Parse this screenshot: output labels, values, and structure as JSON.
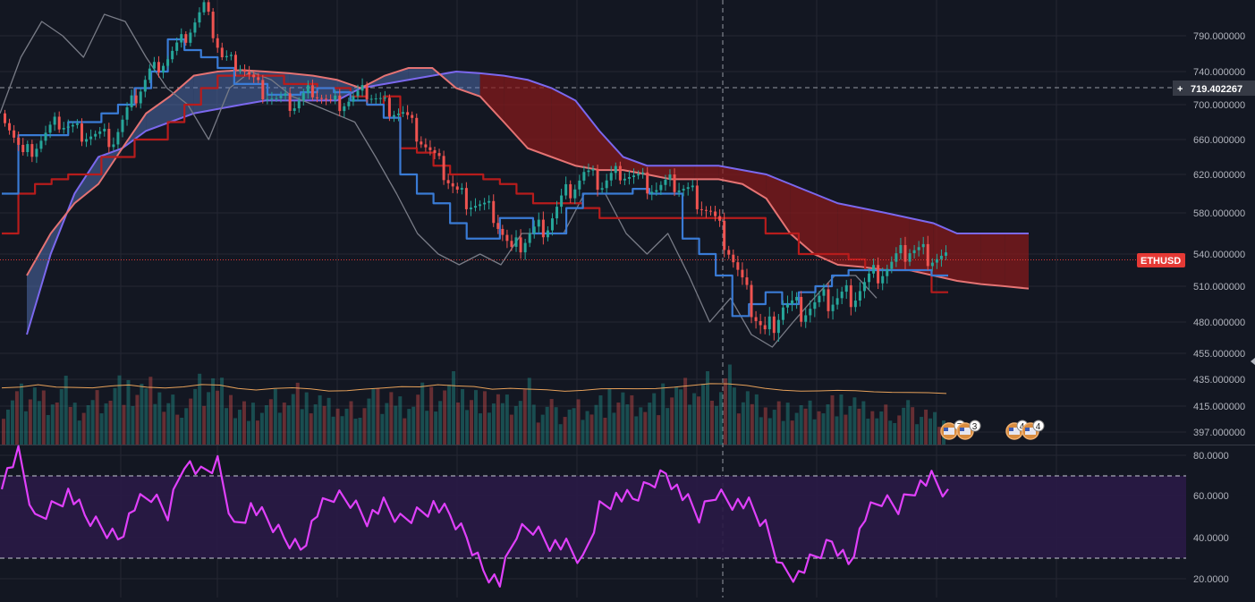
{
  "chart_data": [
    {
      "type": "line",
      "subtype": "candlestick-with-ichimoku-and-volume",
      "title": "",
      "symbol_label": "ETHUSD",
      "crosshair_price_label": "719.402267",
      "last_price": 536,
      "price_axis_ticks": [
        "790.000000",
        "740.000000",
        "700.000000",
        "660.000000",
        "620.000000",
        "580.000000",
        "540.000000",
        "510.000000",
        "480.000000",
        "455.000000",
        "435.000000",
        "415.000000",
        "397.000000"
      ],
      "price_axis_tick_values": [
        790,
        740,
        700,
        660,
        620,
        580,
        540,
        510,
        480,
        455,
        435,
        415,
        397
      ],
      "ylim": [
        390,
        845
      ],
      "grid": true,
      "series": [
        {
          "name": "",
          "kind": "kijun",
          "color": "#b71c1c",
          "values": [
            560,
            600,
            610,
            615,
            620,
            620,
            640,
            640,
            660,
            660,
            680,
            700,
            720,
            735,
            735,
            735,
            735,
            725,
            725,
            720,
            720,
            710,
            700,
            710,
            650,
            645,
            630,
            620,
            620,
            615,
            610,
            600,
            590,
            590,
            590,
            585,
            575,
            575,
            575,
            575,
            575,
            575,
            575,
            575,
            575,
            575,
            560,
            560,
            540,
            540,
            540,
            535,
            525,
            525,
            525,
            525,
            505,
            505
          ]
        },
        {
          "name": "",
          "kind": "tenkan",
          "color": "#3a7bd5",
          "values": [
            600,
            665,
            665,
            665,
            680,
            680,
            690,
            700,
            720,
            740,
            785,
            770,
            760,
            745,
            725,
            725,
            712,
            712,
            715,
            720,
            715,
            705,
            700,
            685,
            620,
            600,
            590,
            570,
            555,
            555,
            575,
            575,
            560,
            560,
            585,
            600,
            600,
            600,
            605,
            600,
            600,
            555,
            540,
            520,
            485,
            495,
            505,
            495,
            505,
            510,
            520,
            525,
            525,
            525,
            525,
            525,
            520,
            520
          ]
        },
        {
          "name": "",
          "kind": "lagging",
          "color": "#787b86",
          "values": [
            690,
            760,
            810,
            790,
            760,
            820,
            810,
            760,
            720,
            700,
            660,
            720,
            740,
            730,
            710,
            700,
            690,
            680,
            640,
            600,
            560,
            540,
            530,
            540,
            530,
            560,
            560,
            560,
            600,
            600,
            560,
            540,
            560,
            520,
            480,
            500,
            470,
            460,
            480,
            500,
            520,
            520,
            500
          ]
        },
        {
          "name": "",
          "kind": "cloud-span-a",
          "color": "#7b68ee",
          "values": [
            470,
            540,
            600,
            640,
            650,
            670,
            680,
            690,
            695,
            700,
            705,
            705,
            705,
            705,
            720,
            725,
            730,
            735,
            740,
            738,
            735,
            730,
            720,
            705,
            670,
            640,
            630,
            630,
            630,
            630,
            625,
            620,
            610,
            600,
            590,
            585,
            580,
            575,
            570,
            560,
            560,
            560,
            560
          ]
        },
        {
          "name": "",
          "kind": "cloud-span-b",
          "color": "#e57373",
          "values": [
            520,
            560,
            590,
            610,
            650,
            690,
            710,
            735,
            740,
            742,
            740,
            738,
            735,
            730,
            720,
            735,
            745,
            745,
            720,
            710,
            680,
            650,
            640,
            630,
            625,
            625,
            620,
            615,
            615,
            615,
            610,
            595,
            560,
            540,
            530,
            528,
            525,
            525,
            520,
            515,
            512,
            510,
            508
          ]
        },
        {
          "name": "",
          "kind": "close",
          "color": "#26a69a",
          "values": [
            690,
            640,
            660,
            680,
            670,
            665,
            660,
            700,
            740,
            760,
            790,
            830,
            760,
            750,
            720,
            705,
            700,
            720,
            700,
            705,
            715,
            700,
            690,
            660,
            630,
            600,
            590,
            580,
            540,
            560,
            570,
            600,
            620,
            610,
            625,
            615,
            605,
            610,
            600,
            580,
            545,
            500,
            470,
            495,
            490,
            495,
            500,
            505,
            520,
            530,
            545,
            540,
            536
          ]
        },
        {
          "name": "",
          "kind": "volume",
          "color": "#26a69a",
          "values": [
            48,
            62,
            55,
            70,
            40,
            52,
            66,
            58,
            61,
            45,
            50,
            72,
            68,
            44,
            40,
            53,
            59,
            47,
            42,
            39,
            50,
            57,
            49,
            63,
            55,
            70,
            52,
            48,
            45,
            60,
            41,
            38,
            46,
            50,
            53,
            47,
            49,
            55,
            60,
            66,
            72,
            58,
            51,
            44,
            40,
            42,
            47,
            45,
            39,
            36,
            40,
            38,
            33
          ]
        },
        {
          "name": "",
          "kind": "rsi",
          "color": "#e040fb",
          "values": [
            68,
            80,
            48,
            55,
            62,
            50,
            45,
            40,
            55,
            60,
            52,
            78,
            70,
            76,
            45,
            55,
            48,
            40,
            35,
            52,
            60,
            58,
            50,
            55,
            48,
            52,
            56,
            50,
            40,
            25,
            18,
            42,
            45,
            38,
            35,
            28,
            55,
            60,
            58,
            66,
            72,
            60,
            50,
            62,
            58,
            55,
            45,
            25,
            22,
            30,
            38,
            28,
            50,
            58,
            55,
            65,
            68,
            60
          ]
        }
      ],
      "rsi_axis_ticks": [
        "80.0000",
        "60.0000",
        "40.0000",
        "20.0000"
      ],
      "rsi_axis_tick_values": [
        80,
        60,
        40,
        20
      ],
      "rsi_bands": [
        30,
        70
      ],
      "event_badges": [
        "7",
        "3",
        "4",
        "4"
      ],
      "colors": {
        "background": "#131722",
        "grid": "#242733",
        "bull": "#26a69a",
        "bear": "#ef5350",
        "cloud_bull": "#5b7ec7",
        "cloud_bear": "#8b1a1a",
        "rsi_fill": "#2a1a46",
        "label_red": "#e53935"
      }
    }
  ]
}
